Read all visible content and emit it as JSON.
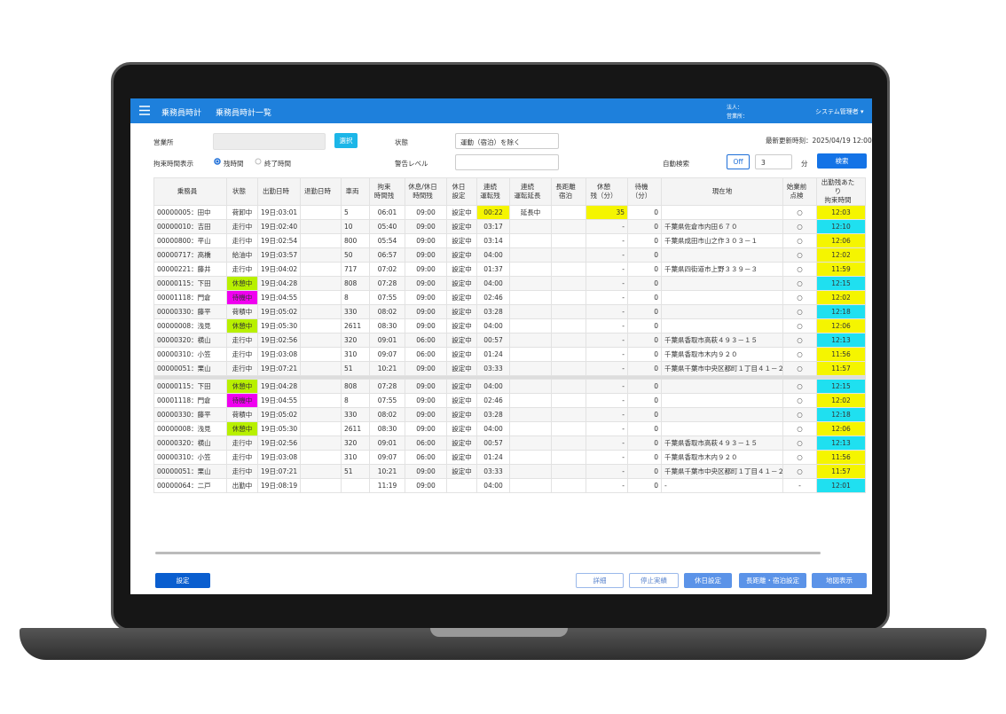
{
  "header": {
    "app": "乗務員時計",
    "page": "乗務員時計一覧",
    "corp": "法人：",
    "office": "営業所：",
    "user": "システム管理者 ▾"
  },
  "filters": {
    "office_label": "営業所",
    "select_button": "選択",
    "status_label": "状態",
    "status_value": "運動（宿泊）を除く",
    "updated": "最新更新時刻：2025/04/19 12:00",
    "display_label": "拘束時間表示",
    "radio_remaining": "残時間",
    "radio_end": "終了時間",
    "warning_label": "警告レベル",
    "auto_label": "自動検索",
    "auto_toggle": "Off",
    "interval": "3",
    "interval_unit": "分",
    "search": "検索"
  },
  "table": {
    "columns": [
      "乗務員",
      "状態",
      "出勤日時",
      "退勤日時",
      "車両",
      "拘束\n時間残",
      "休息/休日\n時間残",
      "休日\n設定",
      "連続\n運転残",
      "連続\n運転延長",
      "長距離\n宿泊",
      "休憩\n残（分）",
      "待機\n（分）",
      "現在地",
      "始業前\n点検",
      "出勤残あたり\n拘束時間"
    ],
    "rows": [
      {
        "cells": [
          "00000005：田中",
          "荷卸中",
          "19日:03:01",
          "",
          "5",
          "06:01",
          "09:00",
          "設定中",
          "00:22",
          "延長中",
          "",
          "35",
          "0",
          "",
          "○",
          "12:03"
        ],
        "fill": {
          "8": "#f5f500",
          "11": "#f5f500",
          "15": "#f5f500"
        }
      },
      {
        "cells": [
          "00000010：吉田",
          "走行中",
          "19日:02:40",
          "",
          "10",
          "05:40",
          "09:00",
          "設定中",
          "03:17",
          "",
          "",
          "-",
          "0",
          "千葉県佐倉市内田６７０",
          "○",
          "12:10"
        ],
        "fill": {
          "15": "#1fe0f0"
        }
      },
      {
        "cells": [
          "00000800：平山",
          "走行中",
          "19日:02:54",
          "",
          "800",
          "05:54",
          "09:00",
          "設定中",
          "03:14",
          "",
          "",
          "-",
          "0",
          "千葉県成田市山之作３０３－１",
          "○",
          "12:06"
        ],
        "fill": {
          "15": "#f5f500"
        }
      },
      {
        "cells": [
          "00000717：高橋",
          "給油中",
          "19日:03:57",
          "",
          "50",
          "06:57",
          "09:00",
          "設定中",
          "04:00",
          "",
          "",
          "-",
          "0",
          "",
          "○",
          "12:02"
        ],
        "fill": {
          "15": "#f5f500"
        }
      },
      {
        "cells": [
          "00000221：藤井",
          "走行中",
          "19日:04:02",
          "",
          "717",
          "07:02",
          "09:00",
          "設定中",
          "01:37",
          "",
          "",
          "-",
          "0",
          "千葉県四街道市上野３３９－３",
          "○",
          "11:59"
        ],
        "fill": {
          "15": "#f5f500"
        }
      },
      {
        "cells": [
          "00000115：下田",
          "休憩中",
          "19日:04:28",
          "",
          "808",
          "07:28",
          "09:00",
          "設定中",
          "04:00",
          "",
          "",
          "-",
          "0",
          "",
          "○",
          "12:15"
        ],
        "fill": {
          "1": "#b8f000",
          "15": "#1fe0f0"
        }
      },
      {
        "cells": [
          "00001118：門倉",
          "待機中",
          "19日:04:55",
          "",
          "8",
          "07:55",
          "09:00",
          "設定中",
          "02:46",
          "",
          "",
          "-",
          "0",
          "",
          "○",
          "12:02"
        ],
        "fill": {
          "1": "#f000f0",
          "15": "#f5f500"
        }
      },
      {
        "cells": [
          "00000330：藤平",
          "荷積中",
          "19日:05:02",
          "",
          "330",
          "08:02",
          "09:00",
          "設定中",
          "03:28",
          "",
          "",
          "-",
          "0",
          "",
          "○",
          "12:18"
        ],
        "fill": {
          "15": "#1fe0f0"
        }
      },
      {
        "cells": [
          "00000008：浅見",
          "休憩中",
          "19日:05:30",
          "",
          "2611",
          "08:30",
          "09:00",
          "設定中",
          "04:00",
          "",
          "",
          "-",
          "0",
          "",
          "○",
          "12:06"
        ],
        "fill": {
          "1": "#b8f000",
          "15": "#f5f500"
        }
      },
      {
        "cells": [
          "00000320：横山",
          "走行中",
          "19日:02:56",
          "",
          "320",
          "09:01",
          "06:00",
          "設定中",
          "00:57",
          "",
          "",
          "-",
          "0",
          "千葉県香取市高萩４９３－１５",
          "○",
          "12:13"
        ],
        "fill": {
          "15": "#1fe0f0"
        }
      },
      {
        "cells": [
          "00000310：小笠",
          "走行中",
          "19日:03:08",
          "",
          "310",
          "09:07",
          "06:00",
          "設定中",
          "01:24",
          "",
          "",
          "-",
          "0",
          "千葉県香取市木内９２０",
          "○",
          "11:56"
        ],
        "fill": {
          "15": "#f5f500"
        }
      },
      {
        "cells": [
          "00000051：栗山",
          "走行中",
          "19日:07:21",
          "",
          "51",
          "10:21",
          "09:00",
          "設定中",
          "03:33",
          "",
          "",
          "-",
          "0",
          "千葉県千葉市中央区都町１丁目４１－２",
          "○",
          "11:57"
        ],
        "fill": {
          "15": "#f5f500"
        }
      }
    ],
    "rows_lower": [
      {
        "cells": [
          "00000115：下田",
          "休憩中",
          "19日:04:28",
          "",
          "808",
          "07:28",
          "09:00",
          "設定中",
          "04:00",
          "",
          "",
          "-",
          "0",
          "",
          "○",
          "12:15"
        ],
        "fill": {
          "1": "#b8f000",
          "15": "#1fe0f0"
        }
      },
      {
        "cells": [
          "00001118：門倉",
          "待機中",
          "19日:04:55",
          "",
          "8",
          "07:55",
          "09:00",
          "設定中",
          "02:46",
          "",
          "",
          "-",
          "0",
          "",
          "○",
          "12:02"
        ],
        "fill": {
          "1": "#f000f0",
          "15": "#f5f500"
        }
      },
      {
        "cells": [
          "00000330：藤平",
          "荷積中",
          "19日:05:02",
          "",
          "330",
          "08:02",
          "09:00",
          "設定中",
          "03:28",
          "",
          "",
          "-",
          "0",
          "",
          "○",
          "12:18"
        ],
        "fill": {
          "15": "#1fe0f0"
        }
      },
      {
        "cells": [
          "00000008：浅見",
          "休憩中",
          "19日:05:30",
          "",
          "2611",
          "08:30",
          "09:00",
          "設定中",
          "04:00",
          "",
          "",
          "-",
          "0",
          "",
          "○",
          "12:06"
        ],
        "fill": {
          "1": "#b8f000",
          "15": "#f5f500"
        }
      },
      {
        "cells": [
          "00000320：横山",
          "走行中",
          "19日:02:56",
          "",
          "320",
          "09:01",
          "06:00",
          "設定中",
          "00:57",
          "",
          "",
          "-",
          "0",
          "千葉県香取市高萩４９３－１５",
          "○",
          "12:13"
        ],
        "fill": {
          "15": "#1fe0f0"
        }
      },
      {
        "cells": [
          "00000310：小笠",
          "走行中",
          "19日:03:08",
          "",
          "310",
          "09:07",
          "06:00",
          "設定中",
          "01:24",
          "",
          "",
          "-",
          "0",
          "千葉県香取市木内９２０",
          "○",
          "11:56"
        ],
        "fill": {
          "15": "#f5f500"
        }
      },
      {
        "cells": [
          "00000051：栗山",
          "走行中",
          "19日:07:21",
          "",
          "51",
          "10:21",
          "09:00",
          "設定中",
          "03:33",
          "",
          "",
          "-",
          "0",
          "千葉県千葉市中央区都町１丁目４１－２",
          "○",
          "11:57"
        ],
        "fill": {
          "15": "#f5f500"
        }
      },
      {
        "cells": [
          "00000064：二戸",
          "出勤中",
          "19日:08:19",
          "",
          "",
          "11:19",
          "09:00",
          "",
          "04:00",
          "",
          "",
          "-",
          "0",
          "-",
          "-",
          "12:01"
        ],
        "fill": {
          "15": "#1fe0f0"
        }
      }
    ]
  },
  "footer": {
    "settings": "設定",
    "detail": "詳細",
    "stop": "停止実績",
    "holiday": "休日設定",
    "long": "長距離・宿泊設定",
    "map": "地図表示"
  }
}
